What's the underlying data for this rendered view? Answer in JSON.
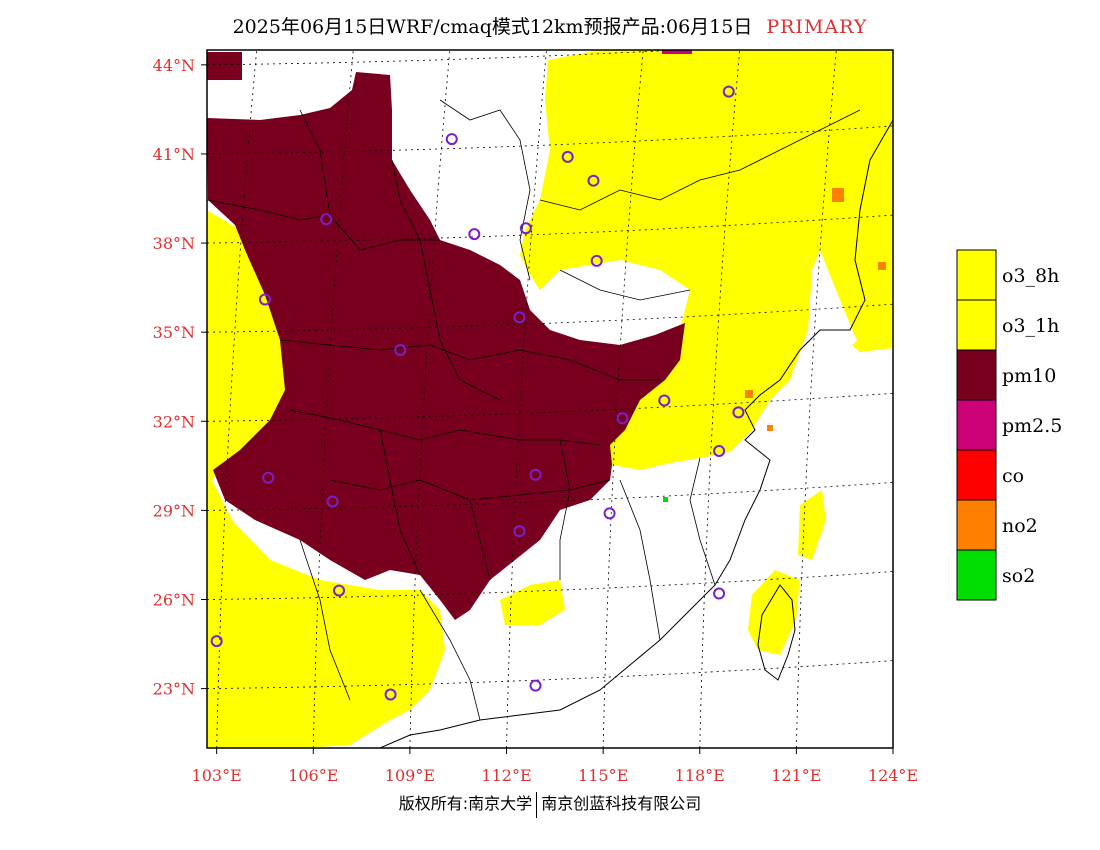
{
  "title": {
    "main": "2025年06月15日WRF/cmaq模式12km预报产品:06月15日",
    "tag": "PRIMARY"
  },
  "map": {
    "lat_labels": [
      "44°N",
      "41°N",
      "38°N",
      "35°N",
      "32°N",
      "29°N",
      "26°N",
      "23°N"
    ],
    "lon_labels": [
      "103°E",
      "106°E",
      "109°E",
      "112°E",
      "115°E",
      "118°E",
      "121°E",
      "124°E"
    ],
    "lat_values": [
      44,
      41,
      38,
      35,
      32,
      29,
      26,
      23
    ],
    "lon_values": [
      103,
      106,
      109,
      112,
      115,
      118,
      121,
      124
    ],
    "lon_range": [
      102.7,
      124
    ],
    "lat_range": [
      21,
      44.5
    ],
    "colors": {
      "o3_8h": "#ffff00",
      "o3_1h": "#ffff00",
      "pm10": "#78001e",
      "pm25": "#cc0077",
      "co": "#ff0000",
      "no2": "#ff7f00",
      "so2": "#00dd00",
      "station": "#7a20c8"
    },
    "stations": [
      [
        118.9,
        43.1
      ],
      [
        110.3,
        41.5
      ],
      [
        113.9,
        40.9
      ],
      [
        114.7,
        40.1
      ],
      [
        106.4,
        38.8
      ],
      [
        111.0,
        38.3
      ],
      [
        112.6,
        38.5
      ],
      [
        114.8,
        37.4
      ],
      [
        104.5,
        36.1
      ],
      [
        112.4,
        35.5
      ],
      [
        108.7,
        34.4
      ],
      [
        116.9,
        32.7
      ],
      [
        119.2,
        32.3
      ],
      [
        115.6,
        32.1
      ],
      [
        118.6,
        31.0
      ],
      [
        112.9,
        30.2
      ],
      [
        104.6,
        30.1
      ],
      [
        106.6,
        29.3
      ],
      [
        115.2,
        28.9
      ],
      [
        112.4,
        28.3
      ],
      [
        106.8,
        26.3
      ],
      [
        118.6,
        26.2
      ],
      [
        103.0,
        24.6
      ],
      [
        108.4,
        22.8
      ],
      [
        112.9,
        23.1
      ]
    ]
  },
  "legend": [
    {
      "label": "o3_8h",
      "color": "#ffff00"
    },
    {
      "label": "o3_1h",
      "color": "#ffff00"
    },
    {
      "label": "pm10",
      "color": "#78001e"
    },
    {
      "label": "pm2.5",
      "color": "#cc0077"
    },
    {
      "label": "co",
      "color": "#ff0000"
    },
    {
      "label": "no2",
      "color": "#ff7f00"
    },
    {
      "label": "so2",
      "color": "#00dd00"
    }
  ],
  "footer": {
    "left": "版权所有:南京大学",
    "right": "南京创蓝科技有限公司"
  }
}
